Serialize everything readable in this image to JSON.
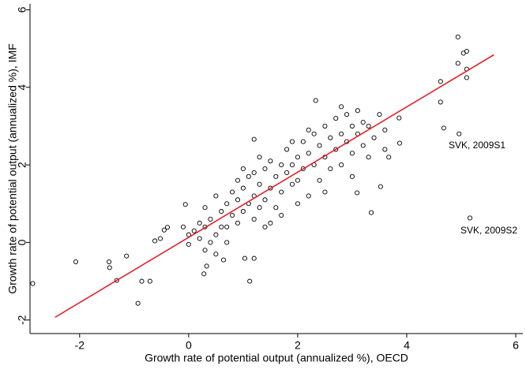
{
  "chart_data": {
    "type": "scatter",
    "x_label": "Growth rate of potential output (annualized %), OECD",
    "y_label": "Growth rate of potential output (annualized %), IMF",
    "xlim": [
      -2.91,
      6.13
    ],
    "ylim": [
      -2.35,
      6.15
    ],
    "xticks": [
      -2,
      0,
      2,
      4,
      6
    ],
    "yticks": [
      -2,
      0,
      2,
      4,
      6
    ],
    "grid": false,
    "points": {
      "color": "#000000",
      "x": [
        -2.86,
        -2.07,
        -1.46,
        -1.45,
        -1.32,
        -1.14,
        -0.93,
        -0.86,
        -0.71,
        -0.62,
        -0.52,
        -0.45,
        -0.39,
        -0.06,
        0.0,
        4.94,
        4.94,
        5.04,
        5.1,
        5.1,
        5.1,
        4.62,
        4.62,
        4.68,
        4.96,
        5.16,
        3.35,
        3.09,
        3.52,
        1.12,
        1.03,
        1.2,
        0.64,
        0.28,
        0.33,
        2.33,
        1.2,
        3.67,
        3.86,
        3.87,
        0.1,
        0.2,
        0.3,
        0.3,
        0.4,
        0.5,
        0.5,
        0.6,
        0.6,
        0.7,
        0.7,
        0.8,
        0.8,
        0.9,
        0.9,
        1.0,
        1.0,
        1.1,
        1.1,
        1.2,
        1.2,
        1.3,
        1.3,
        1.4,
        1.4,
        1.5,
        1.5,
        1.6,
        1.6,
        1.7,
        1.7,
        1.8,
        1.8,
        1.9,
        1.9,
        2.0,
        2.0,
        2.1,
        2.1,
        2.2,
        2.2,
        2.3,
        2.3,
        2.4,
        2.4,
        2.5,
        2.5,
        2.6,
        2.6,
        2.7,
        2.7,
        2.8,
        2.8,
        2.9,
        2.9,
        3.0,
        3.0,
        3.1,
        3.1,
        3.2,
        3.2,
        3.3,
        3.3,
        3.4,
        3.5,
        3.6,
        3.6,
        0.0,
        -0.1,
        0.2,
        0.4,
        1.0,
        1.3,
        0.9,
        2.0,
        2.5,
        1.5,
        0.5,
        0.3,
        2.8,
        3.0,
        1.7,
        1.2,
        2.2,
        1.9,
        0.7,
        1.4
      ],
      "y": [
        -1.06,
        -0.5,
        -0.5,
        -0.65,
        -0.98,
        -0.35,
        -1.57,
        -1.0,
        -1.0,
        0.04,
        0.1,
        0.32,
        0.39,
        0.98,
        -0.05,
        5.3,
        4.62,
        4.88,
        4.93,
        4.47,
        4.25,
        4.15,
        3.62,
        2.95,
        2.8,
        0.63,
        0.77,
        1.28,
        1.44,
        -1.0,
        -0.41,
        -0.41,
        -0.45,
        -0.81,
        -0.61,
        3.66,
        2.66,
        2.2,
        3.21,
        2.56,
        0.3,
        0.1,
        0.4,
        -0.2,
        0.6,
        0.2,
        -0.3,
        0.8,
        0.4,
        1.0,
        0.0,
        0.7,
        1.3,
        1.1,
        0.5,
        1.4,
        0.8,
        1.0,
        1.7,
        1.2,
        0.6,
        1.5,
        0.9,
        1.9,
        1.1,
        1.4,
        2.1,
        1.7,
        0.9,
        2.0,
        1.3,
        1.8,
        2.4,
        1.5,
        2.0,
        2.2,
        1.6,
        1.9,
        2.6,
        1.2,
        2.3,
        2.0,
        2.8,
        2.5,
        1.6,
        2.2,
        3.0,
        2.7,
        1.9,
        3.2,
        2.4,
        2.8,
        2.0,
        3.3,
        2.6,
        3.0,
        2.3,
        2.8,
        3.4,
        2.5,
        3.1,
        3.0,
        2.2,
        2.7,
        3.3,
        2.9,
        2.4,
        0.2,
        0.4,
        0.5,
        0.0,
        1.9,
        2.2,
        1.6,
        1.0,
        1.3,
        0.5,
        1.2,
        0.9,
        3.5,
        1.7,
        0.7,
        1.8,
        2.9,
        2.6,
        0.4,
        0.4
      ]
    },
    "fit": {
      "color": "#e8141c",
      "x": [
        -2.45,
        5.6
      ],
      "y": [
        -1.93,
        4.84
      ]
    },
    "annotations": [
      {
        "text": "SVK, 2009S1"
      },
      {
        "text": "SVK, 2009S2"
      }
    ]
  }
}
